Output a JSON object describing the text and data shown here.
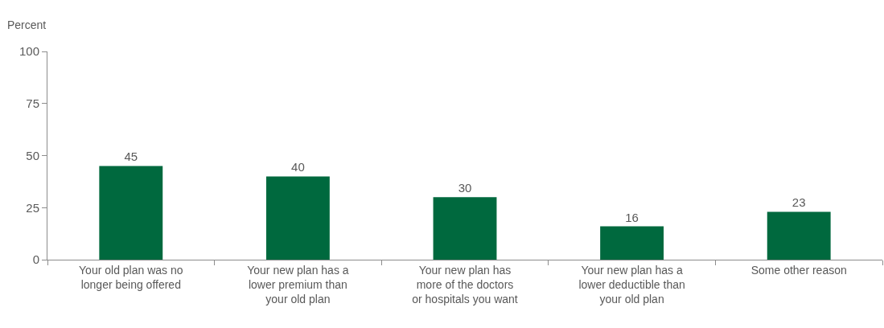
{
  "chart_data": {
    "type": "bar",
    "ylabel": "Percent",
    "categories": [
      "Your old plan was no longer being offered",
      "Your new plan has a lower premium than your old plan",
      "Your new plan has more of the doctors or hospitals you want",
      "Your new plan has a lower deductible than your old plan",
      "Some other reason"
    ],
    "values": [
      45,
      40,
      30,
      16,
      23
    ],
    "color": "#00693e",
    "ylim": [
      0,
      100
    ],
    "yticks": [
      0,
      25,
      50,
      75,
      100
    ],
    "data_labels": true
  }
}
